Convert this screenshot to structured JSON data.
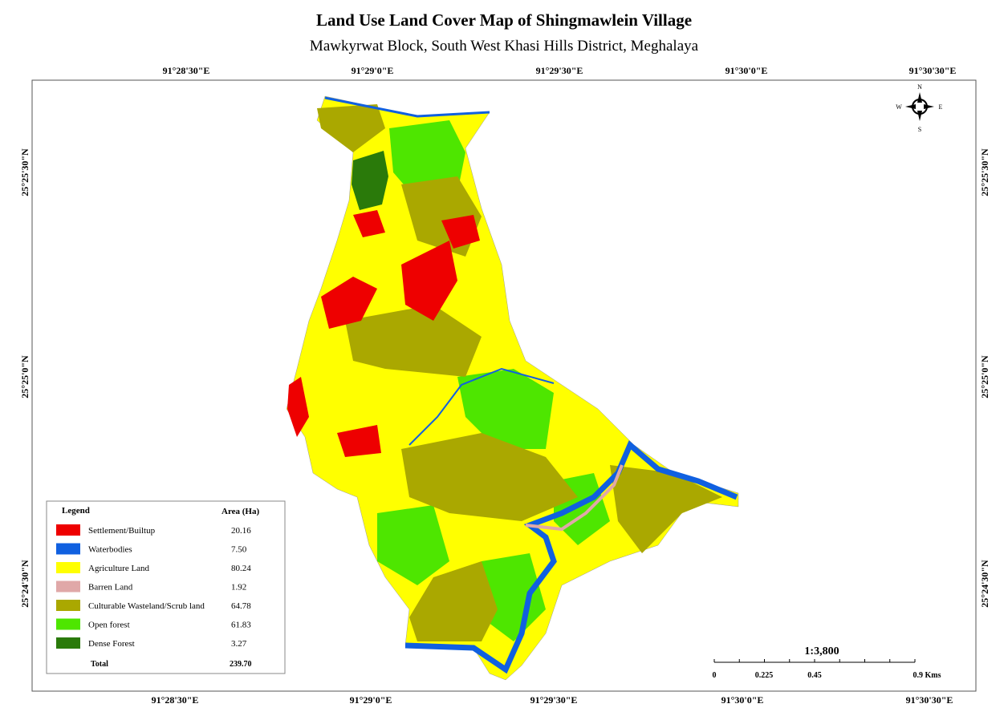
{
  "header": {
    "title": "Land Use Land Cover Map of Shingmawlein Village",
    "subtitle": "Mawkyrwat Block, South West Khasi Hills District, Meghalaya"
  },
  "coordinates": {
    "top": [
      "91°28'30\"E",
      "91°29'0\"E",
      "91°29'30\"E",
      "91°30'0\"E",
      "91°30'30\"E"
    ],
    "bottom": [
      "91°28'30\"E",
      "91°29'0\"E",
      "91°29'30\"E",
      "91°30'0\"E",
      "91°30'30\"E"
    ],
    "left": [
      "25°25'30\"N",
      "25°25'0\"N",
      "25°24'30\"N"
    ],
    "right": [
      "25°25'30\"N",
      "25°25'0\"N",
      "25°24'30\"N"
    ]
  },
  "compass": {
    "n": "N",
    "e": "E",
    "s": "S",
    "w": "W"
  },
  "legend": {
    "title": "Legend",
    "area_heading": "Area (Ha)",
    "items": [
      {
        "label": "Settlement/Builtup",
        "area": "20.16"
      },
      {
        "label": "Waterbodies",
        "area": "7.50"
      },
      {
        "label": "Agriculture Land",
        "area": "80.24"
      },
      {
        "label": "Barren Land",
        "area": "1.92"
      },
      {
        "label": "Culturable Wasteland/Scrub land",
        "area": "64.78"
      },
      {
        "label": "Open forest",
        "area": "61.83"
      },
      {
        "label": "Dense Forest",
        "area": "3.27"
      }
    ],
    "total": {
      "label": "Total",
      "area": "239.70"
    }
  },
  "scale": {
    "ratio": "1:3,800",
    "labels": [
      "0",
      "0.225",
      "0.45",
      "0.9 Kms"
    ]
  }
}
